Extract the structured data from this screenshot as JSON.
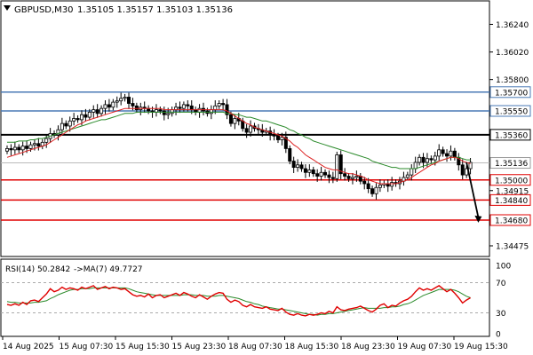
{
  "header": {
    "symbol_label": "GBPUSD,M30",
    "ohlc_label": "1.35105 1.35157 1.35103 1.35136"
  },
  "icons": {
    "header_marker": "down-triangle-icon"
  },
  "colors": {
    "up_candle": "#ffffff",
    "candle_outline": "#000000",
    "ma_fast": "#dd2222",
    "ma_slow": "#2a8a2a",
    "level_blue": "#4a7ab5",
    "level_black": "#000000",
    "level_red": "#e00000",
    "rsi": "#e00000",
    "rsi_ma": "#2a8a2a"
  },
  "chart_data": [
    {
      "type": "line",
      "name": "price",
      "ylim": [
        1.3439,
        1.3642
      ],
      "y_ticks": [
        "1.36240",
        "1.36020",
        "1.35800",
        "1.34915",
        "1.34475"
      ],
      "price_now": 1.35136,
      "price_now_label": "1.35136",
      "x_ticks": [
        "14 Aug 2025",
        "15 Aug 07:30",
        "15 Aug 15:30",
        "15 Aug 23:30",
        "18 Aug 07:30",
        "18 Aug 15:30",
        "18 Aug 23:30",
        "19 Aug 07:30",
        "19 Aug 15:30"
      ],
      "levels": [
        {
          "value": 1.357,
          "label": "1.35700",
          "color": "#4a7ab5",
          "width": 1.5
        },
        {
          "value": 1.3555,
          "label": "1.35550",
          "color": "#4a7ab5",
          "width": 1.5
        },
        {
          "value": 1.3536,
          "label": "1.35360",
          "color": "#000000",
          "width": 2
        },
        {
          "value": 1.35,
          "label": "1.35000",
          "color": "#e00000",
          "width": 1.5
        },
        {
          "value": 1.3484,
          "label": "1.34840",
          "color": "#e00000",
          "width": 1.5
        },
        {
          "value": 1.3468,
          "label": "1.34680",
          "color": "#e00000",
          "width": 1.5
        }
      ],
      "closes": [
        1.3525,
        1.3524,
        1.3526,
        1.3524,
        1.3527,
        1.3525,
        1.3528,
        1.3529,
        1.3527,
        1.353,
        1.3533,
        1.3537,
        1.3536,
        1.354,
        1.3545,
        1.3543,
        1.3547,
        1.3549,
        1.3548,
        1.3552,
        1.355,
        1.3554,
        1.3556,
        1.3553,
        1.3557,
        1.356,
        1.3558,
        1.3562,
        1.3563,
        1.3565,
        1.3566,
        1.3561,
        1.3559,
        1.3556,
        1.3558,
        1.3557,
        1.3555,
        1.3554,
        1.3556,
        1.3555,
        1.3552,
        1.3553,
        1.3556,
        1.3558,
        1.3557,
        1.356,
        1.3559,
        1.3556,
        1.3554,
        1.3557,
        1.3555,
        1.3553,
        1.3556,
        1.3559,
        1.3561,
        1.356,
        1.3552,
        1.3545,
        1.3549,
        1.3547,
        1.3541,
        1.3538,
        1.3543,
        1.3541,
        1.354,
        1.3538,
        1.3539,
        1.3536,
        1.3535,
        1.3532,
        1.3534,
        1.3525,
        1.3515,
        1.351,
        1.3512,
        1.3509,
        1.3506,
        1.3508,
        1.3505,
        1.3503,
        1.3506,
        1.3504,
        1.3502,
        1.3501,
        1.352,
        1.3505,
        1.3503,
        1.3501,
        1.3502,
        1.3503,
        1.3499,
        1.3497,
        1.3493,
        1.3489,
        1.3494,
        1.3496,
        1.3497,
        1.3495,
        1.3498,
        1.3497,
        1.3499,
        1.3502,
        1.3504,
        1.3509,
        1.3514,
        1.3518,
        1.3514,
        1.3517,
        1.3516,
        1.3519,
        1.3524,
        1.3521,
        1.3519,
        1.3523,
        1.3518,
        1.3512,
        1.3504,
        1.3509,
        1.3514
      ],
      "ma_fast": [
        1.3518,
        1.3519,
        1.352,
        1.3521,
        1.3522,
        1.3523,
        1.3524,
        1.3525,
        1.3526,
        1.3527,
        1.3528,
        1.353,
        1.3532,
        1.3534,
        1.3536,
        1.3538,
        1.354,
        1.3542,
        1.3544,
        1.3545,
        1.3547,
        1.3548,
        1.3549,
        1.355,
        1.3551,
        1.3552,
        1.3553,
        1.3554,
        1.3555,
        1.3556,
        1.3557,
        1.3557,
        1.3557,
        1.3557,
        1.3557,
        1.3557,
        1.3557,
        1.3557,
        1.3557,
        1.3557,
        1.3556,
        1.3556,
        1.3556,
        1.3556,
        1.3556,
        1.3556,
        1.3556,
        1.3556,
        1.3556,
        1.3556,
        1.3556,
        1.3556,
        1.3556,
        1.3556,
        1.3556,
        1.3556,
        1.3555,
        1.3553,
        1.3551,
        1.3549,
        1.3547,
        1.3545,
        1.3544,
        1.3542,
        1.3541,
        1.354,
        1.3539,
        1.3538,
        1.3537,
        1.3536,
        1.3535,
        1.3533,
        1.3531,
        1.3528,
        1.3526,
        1.3523,
        1.352,
        1.3518,
        1.3516,
        1.3514,
        1.3512,
        1.351,
        1.3509,
        1.3508,
        1.3508,
        1.3507,
        1.3506,
        1.3505,
        1.3505,
        1.3504,
        1.3503,
        1.3502,
        1.35,
        1.3499,
        1.3498,
        1.3497,
        1.3497,
        1.3497,
        1.3497,
        1.3497,
        1.3498,
        1.3499,
        1.35,
        1.3502,
        1.3504,
        1.3506,
        1.3508,
        1.351,
        1.3512,
        1.3513,
        1.3515,
        1.3516,
        1.3517,
        1.3518,
        1.3518,
        1.3517,
        1.3515,
        1.3514,
        1.3513
      ],
      "ma_slow": [
        1.353,
        1.353,
        1.353,
        1.3531,
        1.3531,
        1.3531,
        1.3532,
        1.3532,
        1.3533,
        1.3533,
        1.3534,
        1.3535,
        1.3536,
        1.3537,
        1.3538,
        1.3539,
        1.354,
        1.3541,
        1.3542,
        1.3543,
        1.3544,
        1.3545,
        1.3546,
        1.3547,
        1.3548,
        1.3548,
        1.3549,
        1.355,
        1.3551,
        1.3552,
        1.3553,
        1.3553,
        1.3553,
        1.3554,
        1.3554,
        1.3554,
        1.3554,
        1.3554,
        1.3554,
        1.3554,
        1.3554,
        1.3554,
        1.3554,
        1.3554,
        1.3554,
        1.3554,
        1.3554,
        1.3554,
        1.3554,
        1.3554,
        1.3554,
        1.3554,
        1.3554,
        1.3554,
        1.3554,
        1.3554,
        1.3553,
        1.3553,
        1.3552,
        1.3552,
        1.3551,
        1.355,
        1.355,
        1.3549,
        1.3548,
        1.3547,
        1.3547,
        1.3546,
        1.3545,
        1.3544,
        1.3543,
        1.3542,
        1.354,
        1.3539,
        1.3537,
        1.3536,
        1.3534,
        1.3533,
        1.3531,
        1.353,
        1.3529,
        1.3528,
        1.3527,
        1.3526,
        1.3525,
        1.3524,
        1.3523,
        1.3522,
        1.3521,
        1.352,
        1.3519,
        1.3518,
        1.3517,
        1.3515,
        1.3514,
        1.3513,
        1.3512,
        1.3511,
        1.351,
        1.351,
        1.3509,
        1.3509,
        1.3509,
        1.3509,
        1.3509,
        1.351,
        1.3511,
        1.3512,
        1.3513,
        1.3514,
        1.3515,
        1.3516,
        1.3517,
        1.3518,
        1.3518,
        1.3518,
        1.3517,
        1.3516,
        1.3516
      ],
      "forecast": [
        [
          117,
          1.3514
        ],
        [
          120,
          1.3466
        ]
      ]
    },
    {
      "type": "line",
      "name": "RSI(14)",
      "label": "RSI(14) 50.2842",
      "ma_label": "->MA(7) 49.7727",
      "ylim": [
        0,
        100
      ],
      "y_ticks": [
        100,
        70,
        30,
        0
      ],
      "levels": [
        70,
        30
      ],
      "rsi": [
        41,
        40,
        42,
        40,
        44,
        41,
        46,
        47,
        45,
        50,
        55,
        62,
        58,
        60,
        64,
        61,
        63,
        62,
        60,
        64,
        62,
        64,
        66,
        61,
        63,
        65,
        62,
        64,
        63,
        61,
        62,
        58,
        54,
        52,
        53,
        51,
        55,
        50,
        53,
        54,
        50,
        52,
        54,
        56,
        53,
        57,
        55,
        52,
        50,
        54,
        51,
        48,
        52,
        55,
        57,
        56,
        48,
        44,
        47,
        45,
        40,
        38,
        41,
        38,
        37,
        36,
        38,
        35,
        34,
        33,
        36,
        31,
        28,
        27,
        29,
        27,
        26,
        28,
        27,
        28,
        30,
        29,
        32,
        30,
        38,
        34,
        33,
        35,
        36,
        37,
        39,
        36,
        33,
        31,
        35,
        40,
        42,
        37,
        40,
        39,
        43,
        46,
        48,
        52,
        58,
        63,
        60,
        62,
        60,
        63,
        66,
        62,
        58,
        61,
        56,
        50,
        43,
        47,
        50
      ],
      "rsi_ma": [
        45,
        44,
        44,
        43,
        43,
        43,
        43,
        44,
        44,
        45,
        46,
        49,
        51,
        54,
        56,
        58,
        60,
        61,
        61,
        62,
        62,
        62,
        63,
        63,
        63,
        63,
        63,
        63,
        63,
        63,
        63,
        62,
        60,
        58,
        57,
        56,
        55,
        54,
        53,
        53,
        53,
        53,
        53,
        53,
        53,
        54,
        54,
        54,
        53,
        53,
        53,
        52,
        52,
        52,
        53,
        53,
        52,
        51,
        50,
        49,
        47,
        45,
        44,
        42,
        41,
        39,
        38,
        37,
        36,
        35,
        35,
        34,
        33,
        32,
        31,
        30,
        29,
        28,
        28,
        27,
        28,
        28,
        29,
        29,
        30,
        31,
        32,
        33,
        34,
        35,
        36,
        37,
        36,
        36,
        36,
        36,
        37,
        37,
        38,
        38,
        39,
        41,
        42,
        44,
        47,
        50,
        53,
        55,
        57,
        59,
        61,
        61,
        61,
        61,
        60,
        58,
        55,
        52,
        50
      ]
    }
  ]
}
